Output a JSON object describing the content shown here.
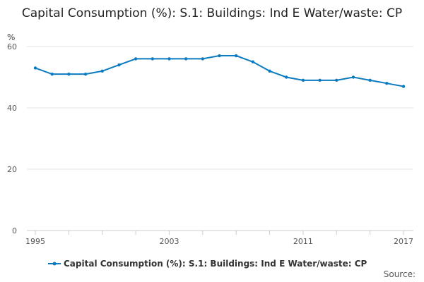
{
  "chart_data": {
    "type": "line",
    "title": "Capital Consumption (%): S.1: Buildings: Ind E Water/waste: CP",
    "ylabel": "%",
    "xlabel": "",
    "ylim": [
      0,
      60
    ],
    "yticks": [
      0,
      20,
      40,
      60
    ],
    "xtick_labels": [
      "1995",
      "2003",
      "2011",
      "2017"
    ],
    "grid": true,
    "legend_position": "bottom",
    "x": [
      1995,
      1996,
      1997,
      1998,
      1999,
      2000,
      2001,
      2002,
      2003,
      2004,
      2005,
      2006,
      2007,
      2008,
      2009,
      2010,
      2011,
      2012,
      2013,
      2014,
      2015,
      2016,
      2017
    ],
    "series": [
      {
        "name": "Capital Consumption (%): S.1: Buildings: Ind E Water/waste: CP",
        "color": "#0b7bc1",
        "values": [
          53,
          51,
          51,
          51,
          52,
          54,
          56,
          56,
          56,
          56,
          56,
          57,
          57,
          55,
          52,
          50,
          49,
          49,
          49,
          50,
          49,
          48,
          47
        ]
      }
    ]
  },
  "source_label": "Source:"
}
